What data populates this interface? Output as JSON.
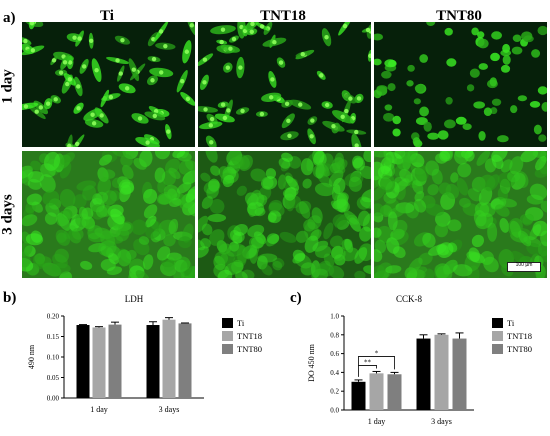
{
  "panel_a": {
    "letter": "a)",
    "columns": [
      "Ti",
      "TNT18",
      "TNT80"
    ],
    "rows": [
      "1 day",
      "3 days"
    ],
    "scale_bar": "100 µm",
    "colors": {
      "cell": "#3fd12a",
      "background": "#07200a"
    }
  },
  "panel_b": {
    "letter": "b)"
  },
  "panel_c": {
    "letter": "c)"
  },
  "chart_data": [
    {
      "type": "bar",
      "title": "LDH",
      "ylabel": "490 nm",
      "xlabel": "",
      "categories": [
        "1 day",
        "3 days"
      ],
      "ylim": [
        0,
        0.2
      ],
      "yticks": [
        "0.00",
        "0.05",
        "0.10",
        "0.15",
        "0.20"
      ],
      "yticks_values": [
        0.0,
        0.05,
        0.1,
        0.15,
        0.2
      ],
      "series": [
        {
          "name": "Ti",
          "color": "#000000",
          "values": [
            0.178,
            0.178
          ],
          "errors": [
            0.001,
            0.008
          ]
        },
        {
          "name": "TNT18",
          "color": "#a6a6a6",
          "values": [
            0.172,
            0.191
          ],
          "errors": [
            0.002,
            0.005
          ]
        },
        {
          "name": "TNT80",
          "color": "#7f7f7f",
          "values": [
            0.179,
            0.182
          ],
          "errors": [
            0.006,
            0.001
          ]
        }
      ],
      "legend": "right"
    },
    {
      "type": "bar",
      "title": "CCK-8",
      "ylabel": "DO 450 nm",
      "xlabel": "",
      "categories": [
        "1 day",
        "3 days"
      ],
      "ylim": [
        0,
        1.0
      ],
      "yticks": [
        "0.0",
        "0.2",
        "0.4",
        "0.6",
        "0.8",
        "1.0"
      ],
      "yticks_values": [
        0.0,
        0.2,
        0.4,
        0.6,
        0.8,
        1.0
      ],
      "series": [
        {
          "name": "Ti",
          "color": "#000000",
          "values": [
            0.3,
            0.76
          ],
          "errors": [
            0.02,
            0.04
          ]
        },
        {
          "name": "TNT18",
          "color": "#a6a6a6",
          "values": [
            0.39,
            0.8
          ],
          "errors": [
            0.02,
            0.01
          ]
        },
        {
          "name": "TNT80",
          "color": "#7f7f7f",
          "values": [
            0.38,
            0.76
          ],
          "errors": [
            0.02,
            0.06
          ]
        }
      ],
      "annotations": [
        "**",
        "*"
      ],
      "legend": "right"
    }
  ]
}
